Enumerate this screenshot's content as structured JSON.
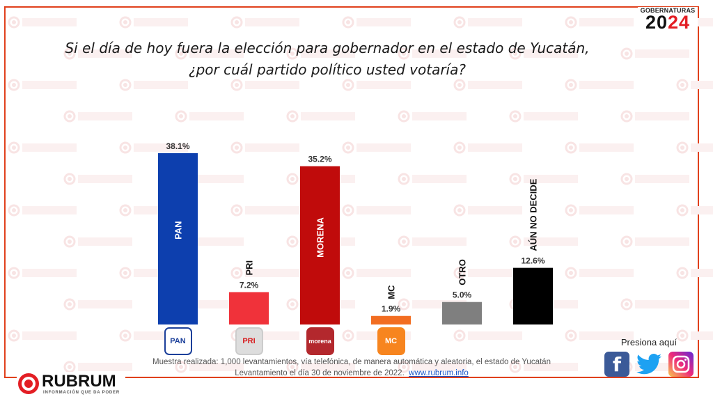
{
  "badge": {
    "top": "GOBERNATURAS",
    "year_a": "20",
    "year_b": "24"
  },
  "watermark_text": "RUBRUM",
  "chart_data": {
    "type": "bar",
    "title": "Si el día de hoy fuera la elección para gobernador en el estado de Yucatán,\n¿por cuál  partido político usted votaría?",
    "title_lines": [
      "Si el día de hoy fuera la elección para gobernador en el estado de Yucatán,",
      "¿por cuál  partido político usted votaría?"
    ],
    "categories": [
      "PAN",
      "PRI",
      "MORENA",
      "MC",
      "OTRO",
      "AÚN NO DECIDE"
    ],
    "values": [
      38.1,
      7.2,
      35.2,
      1.9,
      5.0,
      12.6
    ],
    "value_labels": [
      "38.1%",
      "7.2%",
      "35.2%",
      "1.9%",
      "5.0%",
      "12.6%"
    ],
    "colors": [
      "#0d3fae",
      "#f0323a",
      "#c00b0b",
      "#f26d21",
      "#7f7f7f",
      "#000000"
    ],
    "label_inside": [
      true,
      false,
      true,
      false,
      false,
      false
    ],
    "xlabel": "",
    "ylabel": "",
    "ylim": [
      0,
      40
    ],
    "grid": false,
    "legend": "none",
    "party_logos": [
      "PAN",
      "PRI",
      "morena",
      "MC",
      "",
      ""
    ]
  },
  "footer": {
    "note_line1": "Muestra realizada: 1,000 levantamientos, vía telefónica, de manera automática y aleatoria, el estado de Yucatán",
    "note_line2": "Levantamiento el día 30 de noviembre de 2022.",
    "link": "www.rubrum.info",
    "brand": "RUBRUM",
    "tagline": "INFORMACIÓN QUE DA PODER"
  },
  "social": {
    "label": "Presiona aquí",
    "icons": [
      "facebook-icon",
      "twitter-icon",
      "instagram-icon"
    ],
    "facebook_glyph": "f"
  }
}
